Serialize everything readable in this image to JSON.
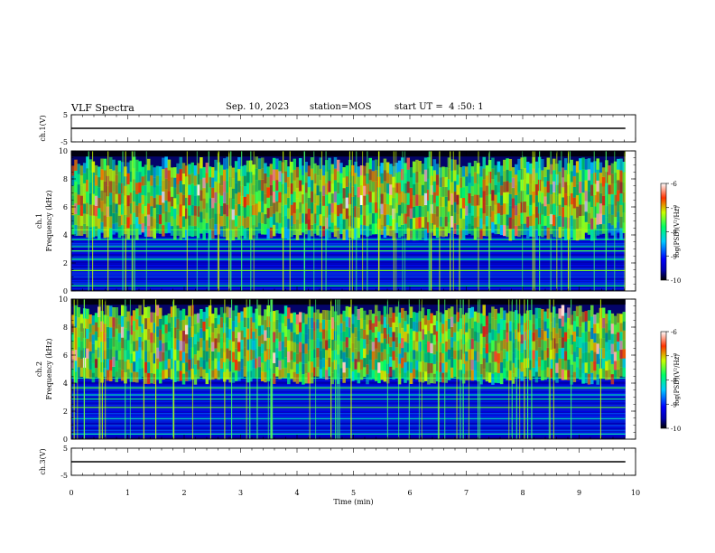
{
  "header": {
    "title": "VLF Spectra",
    "date": "Sep. 10, 2023",
    "station": "station=MOS",
    "start": "start UT =  4 :50: 1"
  },
  "chart_data": [
    {
      "type": "line",
      "name": "ch1-waveform",
      "ylabel": "ch.1(V)",
      "ylim": [
        -5,
        5
      ],
      "yticks": [
        "5",
        "-5"
      ],
      "xlim": [
        0,
        10
      ],
      "series": [
        {
          "x": [
            0,
            9.82
          ],
          "y": [
            0,
            0
          ]
        }
      ]
    },
    {
      "type": "heatmap",
      "name": "ch1-spectrogram",
      "ylabel": "ch.1\nFrequency (kHz)",
      "ylim": [
        0,
        10
      ],
      "yticks": [
        "0",
        "2",
        "4",
        "6",
        "8",
        "10"
      ],
      "xlim": [
        0,
        10
      ],
      "data_end_min": 9.82,
      "emission_band_khz": [
        4.2,
        9.6
      ],
      "colorbar": {
        "label": "log(PSD)(V²/Hz)",
        "range": [
          -10,
          -6
        ],
        "ticks": [
          "-6",
          "-7",
          "-8",
          "-9",
          "-10"
        ]
      }
    },
    {
      "type": "heatmap",
      "name": "ch2-spectrogram",
      "ylabel": "ch.2\nFrequency (kHz)",
      "ylim": [
        0,
        10
      ],
      "yticks": [
        "0",
        "2",
        "4",
        "6",
        "8",
        "10"
      ],
      "xlim": [
        0,
        10
      ],
      "data_end_min": 9.82,
      "emission_band_khz": [
        4.5,
        9.6
      ],
      "colorbar": {
        "label": "log(PSD)(V²/Hz)",
        "range": [
          -10,
          -6
        ],
        "ticks": [
          "-6",
          "-7",
          "-8",
          "-9",
          "-10"
        ]
      }
    },
    {
      "type": "line",
      "name": "ch3-waveform",
      "ylabel": "ch.3(V)",
      "ylim": [
        -5,
        5
      ],
      "yticks": [
        "5",
        "-5"
      ],
      "xlim": [
        0,
        10
      ],
      "xlabel": "Time (min)",
      "xticks": [
        "0",
        "1",
        "2",
        "3",
        "4",
        "5",
        "6",
        "7",
        "8",
        "9",
        "10"
      ],
      "series": [
        {
          "x": [
            0,
            9.82
          ],
          "y": [
            0,
            0
          ]
        }
      ]
    }
  ]
}
